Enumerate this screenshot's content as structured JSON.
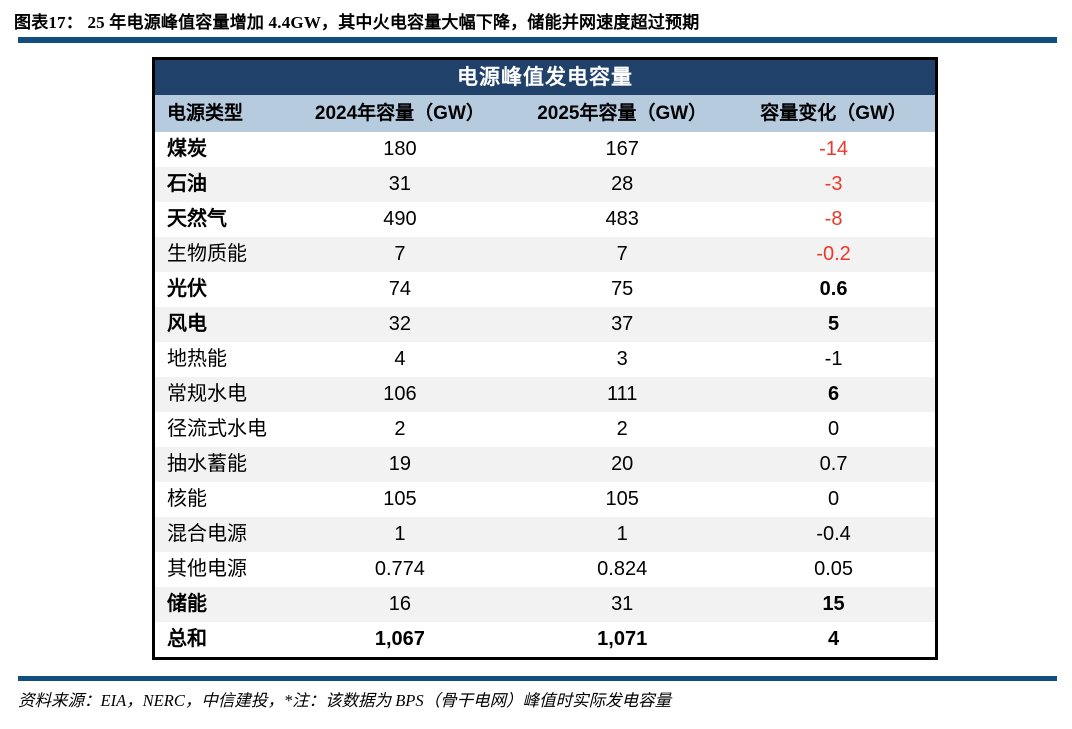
{
  "page": {
    "title": "图表17：  25 年电源峰值容量增加 4.4GW，其中火电容量大幅下降，储能并网速度超过预期",
    "source_note": "资料来源：EIA，NERC，中信建投，*注：该数据为 BPS（骨干电网）峰值时实际发电容量"
  },
  "colors": {
    "navy_header": "#204169",
    "column_header_blue": "#B7CBDF",
    "divider_blue": "#124F80",
    "stripe_gray": "#F2F2F2",
    "negative_red": "#E8392B"
  },
  "table": {
    "title": "电源峰值发电容量",
    "columns": [
      "电源类型",
      "2024年容量（GW）",
      "2025年容量（GW）",
      "容量变化（GW）"
    ],
    "rows": [
      {
        "type": "煤炭",
        "y2024": "180",
        "y2025": "167",
        "change": "-14",
        "bold_type": true,
        "bold_values": false,
        "bold_change": false,
        "red_change": true
      },
      {
        "type": "石油",
        "y2024": "31",
        "y2025": "28",
        "change": "-3",
        "bold_type": true,
        "bold_values": false,
        "bold_change": false,
        "red_change": true
      },
      {
        "type": "天然气",
        "y2024": "490",
        "y2025": "483",
        "change": "-8",
        "bold_type": true,
        "bold_values": false,
        "bold_change": false,
        "red_change": true
      },
      {
        "type": "生物质能",
        "y2024": "7",
        "y2025": "7",
        "change": "-0.2",
        "bold_type": false,
        "bold_values": false,
        "bold_change": false,
        "red_change": true
      },
      {
        "type": "光伏",
        "y2024": "74",
        "y2025": "75",
        "change": "0.6",
        "bold_type": true,
        "bold_values": false,
        "bold_change": true,
        "red_change": false
      },
      {
        "type": "风电",
        "y2024": "32",
        "y2025": "37",
        "change": "5",
        "bold_type": true,
        "bold_values": false,
        "bold_change": true,
        "red_change": false
      },
      {
        "type": "地热能",
        "y2024": "4",
        "y2025": "3",
        "change": "-1",
        "bold_type": false,
        "bold_values": false,
        "bold_change": false,
        "red_change": false
      },
      {
        "type": "常规水电",
        "y2024": "106",
        "y2025": "111",
        "change": "6",
        "bold_type": false,
        "bold_values": false,
        "bold_change": true,
        "red_change": false
      },
      {
        "type": "径流式水电",
        "y2024": "2",
        "y2025": "2",
        "change": "0",
        "bold_type": false,
        "bold_values": false,
        "bold_change": false,
        "red_change": false
      },
      {
        "type": "抽水蓄能",
        "y2024": "19",
        "y2025": "20",
        "change": "0.7",
        "bold_type": false,
        "bold_values": false,
        "bold_change": false,
        "red_change": false
      },
      {
        "type": "核能",
        "y2024": "105",
        "y2025": "105",
        "change": "0",
        "bold_type": false,
        "bold_values": false,
        "bold_change": false,
        "red_change": false
      },
      {
        "type": "混合电源",
        "y2024": "1",
        "y2025": "1",
        "change": "-0.4",
        "bold_type": false,
        "bold_values": false,
        "bold_change": false,
        "red_change": false
      },
      {
        "type": "其他电源",
        "y2024": "0.774",
        "y2025": "0.824",
        "change": "0.05",
        "bold_type": false,
        "bold_values": false,
        "bold_change": false,
        "red_change": false
      },
      {
        "type": "储能",
        "y2024": "16",
        "y2025": "31",
        "change": "15",
        "bold_type": true,
        "bold_values": false,
        "bold_change": true,
        "red_change": false
      },
      {
        "type": "总和",
        "y2024": "1,067",
        "y2025": "1,071",
        "change": "4",
        "bold_type": true,
        "bold_values": true,
        "bold_change": true,
        "red_change": false
      }
    ]
  },
  "chart_data": {
    "type": "table",
    "title": "电源峰值发电容量",
    "columns": [
      "电源类型",
      "2024年容量（GW）",
      "2025年容量（GW）",
      "容量变化（GW）"
    ],
    "rows": [
      [
        "煤炭",
        180,
        167,
        -14
      ],
      [
        "石油",
        31,
        28,
        -3
      ],
      [
        "天然气",
        490,
        483,
        -8
      ],
      [
        "生物质能",
        7,
        7,
        -0.2
      ],
      [
        "光伏",
        74,
        75,
        0.6
      ],
      [
        "风电",
        32,
        37,
        5
      ],
      [
        "地热能",
        4,
        3,
        -1
      ],
      [
        "常规水电",
        106,
        111,
        6
      ],
      [
        "径流式水电",
        2,
        2,
        0
      ],
      [
        "抽水蓄能",
        19,
        20,
        0.7
      ],
      [
        "核能",
        105,
        105,
        0
      ],
      [
        "混合电源",
        1,
        1,
        -0.4
      ],
      [
        "其他电源",
        0.774,
        0.824,
        0.05
      ],
      [
        "储能",
        16,
        31,
        15
      ],
      [
        "总和",
        1067,
        1071,
        4
      ]
    ],
    "notes": "负的容量变化以红色显示；资料来源：EIA，NERC，中信建投"
  }
}
